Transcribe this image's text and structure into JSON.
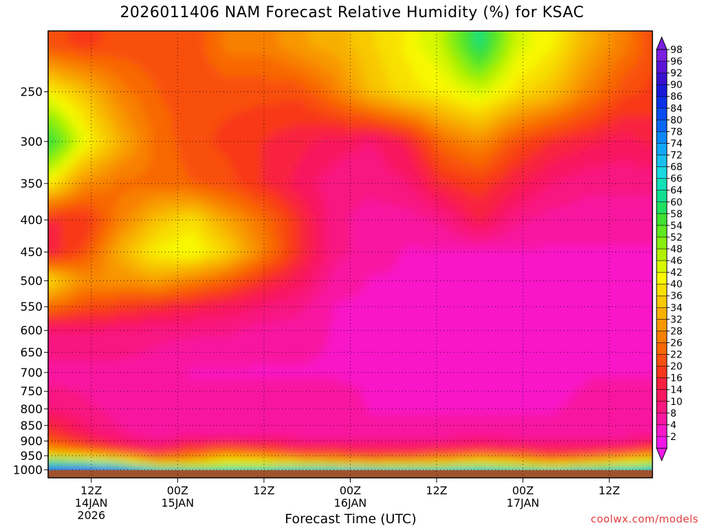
{
  "chart_data": {
    "type": "heatmap",
    "title": "2026011406 NAM Forecast Relative Humidity (%) for KSAC",
    "xlabel": "Forecast Time (UTC)",
    "ylabel": "",
    "x_ticks": [
      {
        "hour": 12,
        "label": "12Z",
        "sub1": "14JAN",
        "sub2": "2026"
      },
      {
        "hour": 24,
        "label": "00Z",
        "sub1": "15JAN",
        "sub2": ""
      },
      {
        "hour": 36,
        "label": "12Z",
        "sub1": "",
        "sub2": ""
      },
      {
        "hour": 48,
        "label": "00Z",
        "sub1": "16JAN",
        "sub2": ""
      },
      {
        "hour": 60,
        "label": "12Z",
        "sub1": "",
        "sub2": ""
      },
      {
        "hour": 72,
        "label": "00Z",
        "sub1": "17JAN",
        "sub2": ""
      },
      {
        "hour": 84,
        "label": "12Z",
        "sub1": "",
        "sub2": ""
      }
    ],
    "xlim": [
      6,
      90
    ],
    "y_ticks": [
      250,
      300,
      350,
      400,
      450,
      500,
      550,
      600,
      650,
      700,
      750,
      800,
      850,
      900,
      950,
      1000
    ],
    "ylim": [
      200,
      1030
    ],
    "y_scale": "log",
    "grid": true,
    "colorbar": {
      "labels": [
        98,
        96,
        92,
        90,
        86,
        84,
        80,
        78,
        74,
        72,
        68,
        66,
        64,
        60,
        58,
        54,
        52,
        48,
        46,
        42,
        40,
        36,
        34,
        32,
        28,
        26,
        22,
        20,
        16,
        14,
        10,
        8,
        4,
        2
      ],
      "colors": [
        "#7b1fe0",
        "#5a14d8",
        "#3a10d0",
        "#1a18d8",
        "#0a30e8",
        "#0a4cf0",
        "#0a68f5",
        "#0a88f8",
        "#12a8f8",
        "#18c0f0",
        "#18d8e0",
        "#10e0b8",
        "#10e090",
        "#20e060",
        "#40e030",
        "#60e820",
        "#88ee10",
        "#b0f000",
        "#d8f800",
        "#f8f800",
        "#f8e000",
        "#f8c800",
        "#f8b000",
        "#f89800",
        "#f88000",
        "#f86800",
        "#f85010",
        "#f83818",
        "#f82040",
        "#f81860",
        "#f81880",
        "#f818a0",
        "#f818c8",
        "#f018e8"
      ],
      "triangles": "both"
    },
    "ground_fill": "#a0522d",
    "rh_field": [
      {
        "p": 210,
        "rh": [
          22,
          20,
          22,
          22,
          22,
          28,
          28,
          32,
          34,
          38,
          42,
          48,
          62,
          46,
          42,
          34,
          28,
          22
        ]
      },
      {
        "p": 250,
        "rh": [
          42,
          36,
          28,
          24,
          22,
          22,
          22,
          22,
          28,
          36,
          40,
          42,
          46,
          40,
          36,
          28,
          22,
          20
        ]
      },
      {
        "p": 300,
        "rh": [
          60,
          44,
          34,
          26,
          22,
          20,
          18,
          16,
          14,
          12,
          16,
          26,
          30,
          22,
          18,
          16,
          14,
          16
        ]
      },
      {
        "p": 350,
        "rh": [
          42,
          30,
          26,
          26,
          24,
          22,
          18,
          14,
          10,
          10,
          12,
          18,
          20,
          16,
          12,
          10,
          10,
          10
        ]
      },
      {
        "p": 400,
        "rh": [
          18,
          18,
          28,
          36,
          40,
          32,
          26,
          18,
          10,
          8,
          8,
          10,
          16,
          10,
          8,
          8,
          8,
          8
        ]
      },
      {
        "p": 450,
        "rh": [
          16,
          22,
          34,
          42,
          44,
          38,
          28,
          18,
          10,
          8,
          6,
          6,
          6,
          6,
          6,
          6,
          6,
          6
        ]
      },
      {
        "p": 500,
        "rh": [
          40,
          30,
          30,
          32,
          28,
          24,
          18,
          14,
          8,
          6,
          6,
          6,
          6,
          6,
          6,
          6,
          6,
          6
        ]
      },
      {
        "p": 550,
        "rh": [
          26,
          22,
          20,
          18,
          16,
          14,
          12,
          10,
          6,
          6,
          4,
          4,
          4,
          6,
          6,
          6,
          6,
          6
        ]
      },
      {
        "p": 600,
        "rh": [
          12,
          12,
          12,
          10,
          10,
          10,
          8,
          8,
          6,
          6,
          4,
          4,
          4,
          4,
          6,
          6,
          6,
          6
        ]
      },
      {
        "p": 700,
        "rh": [
          8,
          8,
          8,
          8,
          6,
          6,
          6,
          6,
          6,
          6,
          4,
          4,
          4,
          4,
          4,
          6,
          6,
          6
        ]
      },
      {
        "p": 800,
        "rh": [
          12,
          10,
          8,
          8,
          8,
          8,
          8,
          8,
          8,
          6,
          6,
          6,
          6,
          6,
          6,
          8,
          8,
          8
        ]
      },
      {
        "p": 880,
        "rh": [
          20,
          14,
          10,
          8,
          8,
          8,
          8,
          8,
          8,
          8,
          8,
          8,
          8,
          8,
          8,
          8,
          8,
          8
        ]
      },
      {
        "p": 930,
        "rh": [
          30,
          24,
          18,
          14,
          20,
          24,
          20,
          16,
          16,
          14,
          14,
          16,
          18,
          16,
          14,
          14,
          16,
          20
        ]
      },
      {
        "p": 970,
        "rh": [
          58,
          54,
          46,
          32,
          34,
          42,
          40,
          36,
          32,
          30,
          32,
          34,
          40,
          36,
          30,
          34,
          40,
          46
        ]
      },
      {
        "p": 1000,
        "rh": [
          82,
          86,
          80,
          62,
          58,
          60,
          62,
          64,
          64,
          62,
          60,
          62,
          64,
          60,
          58,
          60,
          64,
          66
        ]
      },
      {
        "p": 1015,
        "rh": [
          96,
          98,
          96,
          82,
          78,
          76,
          78,
          82,
          82,
          80,
          78,
          78,
          80,
          78,
          78,
          80,
          80,
          80
        ]
      }
    ],
    "rh_field_hours": [
      6,
      11,
      16,
      21,
      26,
      31,
      36,
      41,
      46,
      51,
      56,
      61,
      66,
      71,
      76,
      81,
      86,
      90
    ]
  },
  "credit": "coolwx.com/models"
}
